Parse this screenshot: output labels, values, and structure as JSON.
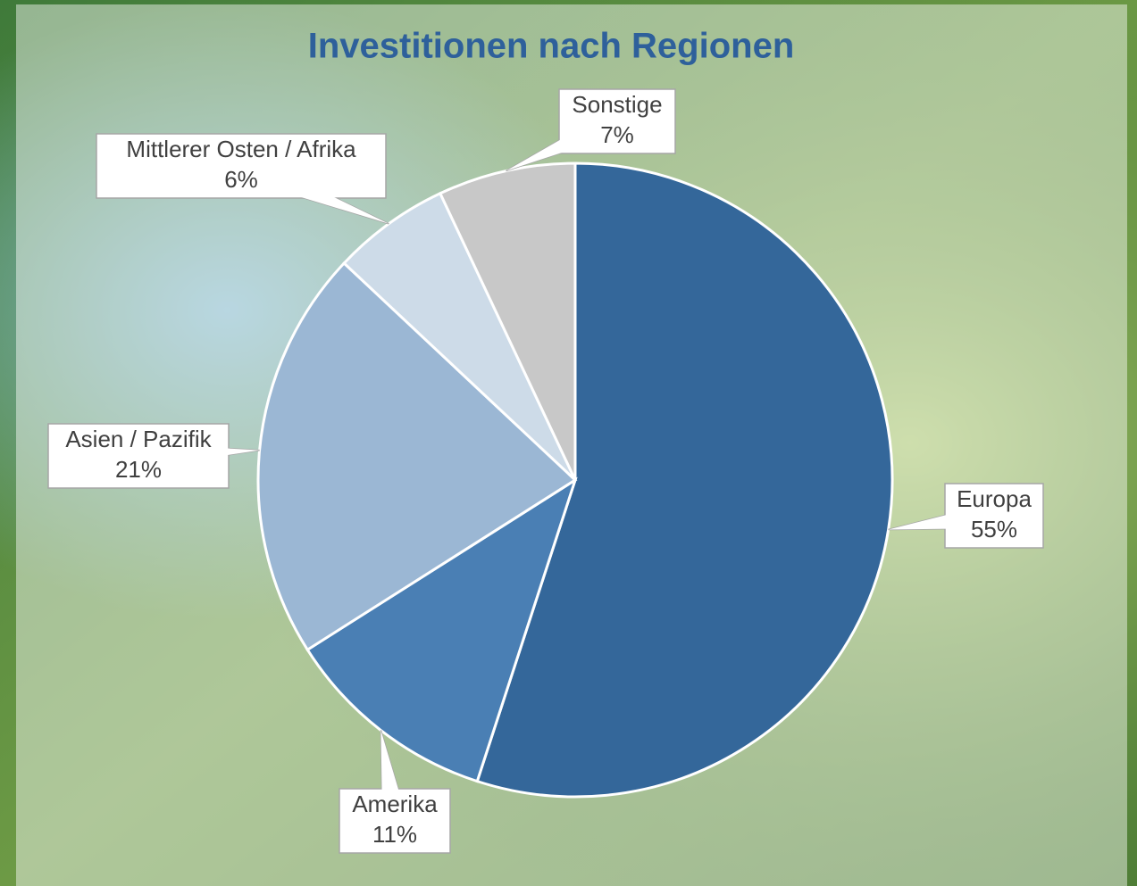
{
  "chart_data": {
    "type": "pie",
    "title": "Investitionen nach Regionen",
    "categories": [
      "Europa",
      "Amerika",
      "Asien / Pazifik",
      "Mittlerer Osten / Afrika",
      "Sonstige"
    ],
    "values": [
      55,
      11,
      21,
      6,
      7
    ],
    "value_labels": [
      "55%",
      "11%",
      "21%",
      "6%",
      "7%"
    ],
    "colors": [
      "#34679a",
      "#4a7fb4",
      "#9bb7d4",
      "#cddbe8",
      "#c8c8c8"
    ]
  }
}
